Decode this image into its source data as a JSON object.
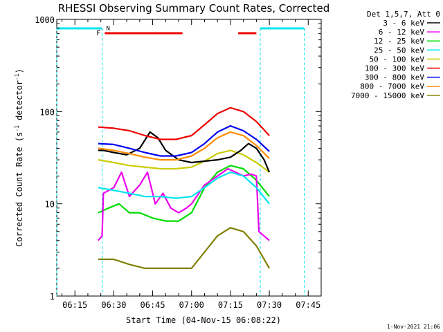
{
  "chart_data": {
    "type": "line",
    "title": "RHESSI Observing Summary Count Rates, Corrected",
    "xlabel": "Start Time (04-Nov-15 06:08:22)",
    "ylabel_main": "Corrected Count Rate (s",
    "ylabel_sup1": "-1",
    "ylabel_mid": " detector",
    "ylabel_sup2": "-1",
    "ylabel_end": ")",
    "timestamp": "1-Nov-2021 21:06",
    "y_scale": "log",
    "ylim": [
      1,
      1000
    ],
    "xlim_minutes": [
      "06:08",
      "07:50"
    ],
    "x_ticks": [
      "06:15",
      "06:30",
      "06:45",
      "07:00",
      "07:15",
      "07:30",
      "07:45"
    ],
    "y_ticks": [
      "1",
      "10",
      "100",
      "1000"
    ],
    "legend_header": "Det 1,5,7, Att 0",
    "legend_position": "right",
    "flags": {
      "night_label": "N",
      "flare_label": "F",
      "night_color": "#00e5ee",
      "flare_color": "#ee0000",
      "night_intervals": [
        [
          "06:08",
          "06:25.5"
        ],
        [
          "07:26.5",
          "07:43.5"
        ]
      ],
      "flare_intervals": [
        [
          "06:26.5",
          "06:56.5"
        ],
        [
          "07:18",
          "07:25"
        ]
      ]
    },
    "series": [
      {
        "name": "3 - 6 keV",
        "color": "#000000",
        "points": [
          [
            "06:24",
            38
          ],
          [
            "06:26",
            38
          ],
          [
            "06:30",
            36
          ],
          [
            "06:35",
            34
          ],
          [
            "06:40",
            40
          ],
          [
            "06:44",
            60
          ],
          [
            "06:47",
            52
          ],
          [
            "06:50",
            38
          ],
          [
            "06:55",
            30
          ],
          [
            "07:00",
            28
          ],
          [
            "07:05",
            29
          ],
          [
            "07:10",
            30
          ],
          [
            "07:15",
            32
          ],
          [
            "07:19",
            38
          ],
          [
            "07:22",
            45
          ],
          [
            "07:25",
            40
          ],
          [
            "07:28",
            30
          ],
          [
            "07:30",
            22
          ]
        ]
      },
      {
        "name": "6 - 12 keV",
        "color": "#ee00ee",
        "points": [
          [
            "06:24",
            4
          ],
          [
            "06:25.5",
            4.5
          ],
          [
            "06:26",
            13
          ],
          [
            "06:30",
            15
          ],
          [
            "06:33",
            22
          ],
          [
            "06:36",
            12
          ],
          [
            "06:40",
            16
          ],
          [
            "06:43",
            22
          ],
          [
            "06:46",
            10
          ],
          [
            "06:49",
            13
          ],
          [
            "06:52",
            9
          ],
          [
            "06:55",
            8
          ],
          [
            "06:58",
            9
          ],
          [
            "07:00",
            10
          ],
          [
            "07:05",
            16
          ],
          [
            "07:10",
            20
          ],
          [
            "07:14",
            24
          ],
          [
            "07:17",
            22
          ],
          [
            "07:20",
            20
          ],
          [
            "07:23",
            21
          ],
          [
            "07:25",
            20
          ],
          [
            "07:26",
            5
          ],
          [
            "07:30",
            4
          ]
        ]
      },
      {
        "name": "12 - 25 keV",
        "color": "#00dd00",
        "points": [
          [
            "06:24",
            8
          ],
          [
            "06:28",
            9
          ],
          [
            "06:32",
            10
          ],
          [
            "06:36",
            8
          ],
          [
            "06:40",
            8
          ],
          [
            "06:45",
            7
          ],
          [
            "06:50",
            6.5
          ],
          [
            "06:55",
            6.5
          ],
          [
            "07:00",
            8
          ],
          [
            "07:05",
            15
          ],
          [
            "07:10",
            22
          ],
          [
            "07:15",
            26
          ],
          [
            "07:20",
            24
          ],
          [
            "07:25",
            18
          ],
          [
            "07:30",
            12
          ]
        ]
      },
      {
        "name": "25 - 50 keV",
        "color": "#00e5ee",
        "points": [
          [
            "06:24",
            15
          ],
          [
            "06:30",
            14
          ],
          [
            "06:36",
            13
          ],
          [
            "06:42",
            12
          ],
          [
            "06:48",
            12
          ],
          [
            "06:54",
            11.5
          ],
          [
            "07:00",
            12
          ],
          [
            "07:05",
            15
          ],
          [
            "07:10",
            19
          ],
          [
            "07:15",
            22
          ],
          [
            "07:20",
            20
          ],
          [
            "07:25",
            15
          ],
          [
            "07:30",
            10
          ]
        ]
      },
      {
        "name": "50 - 100 keV",
        "color": "#cccc00",
        "points": [
          [
            "06:24",
            30
          ],
          [
            "06:30",
            28
          ],
          [
            "06:36",
            26
          ],
          [
            "06:42",
            25
          ],
          [
            "06:48",
            24
          ],
          [
            "06:54",
            24
          ],
          [
            "07:00",
            25
          ],
          [
            "07:05",
            29
          ],
          [
            "07:10",
            35
          ],
          [
            "07:15",
            38
          ],
          [
            "07:20",
            34
          ],
          [
            "07:25",
            28
          ],
          [
            "07:30",
            22
          ]
        ]
      },
      {
        "name": "100 - 300 keV",
        "color": "#ee0000",
        "points": [
          [
            "06:24",
            68
          ],
          [
            "06:30",
            66
          ],
          [
            "06:36",
            62
          ],
          [
            "06:42",
            55
          ],
          [
            "06:48",
            50
          ],
          [
            "06:54",
            50
          ],
          [
            "07:00",
            55
          ],
          [
            "07:05",
            72
          ],
          [
            "07:10",
            95
          ],
          [
            "07:15",
            110
          ],
          [
            "07:20",
            100
          ],
          [
            "07:25",
            78
          ],
          [
            "07:30",
            55
          ]
        ]
      },
      {
        "name": "300 - 800 keV",
        "color": "#0000ee",
        "points": [
          [
            "06:24",
            45
          ],
          [
            "06:30",
            44
          ],
          [
            "06:36",
            40
          ],
          [
            "06:42",
            36
          ],
          [
            "06:48",
            33
          ],
          [
            "06:54",
            33
          ],
          [
            "07:00",
            36
          ],
          [
            "07:05",
            45
          ],
          [
            "07:10",
            60
          ],
          [
            "07:15",
            70
          ],
          [
            "07:20",
            62
          ],
          [
            "07:25",
            50
          ],
          [
            "07:30",
            37
          ]
        ]
      },
      {
        "name": "800 - 7000 keV",
        "color": "#ff8c00",
        "points": [
          [
            "06:24",
            40
          ],
          [
            "06:30",
            38
          ],
          [
            "06:36",
            35
          ],
          [
            "06:42",
            32
          ],
          [
            "06:48",
            30
          ],
          [
            "06:54",
            30
          ],
          [
            "07:00",
            33
          ],
          [
            "07:05",
            40
          ],
          [
            "07:10",
            52
          ],
          [
            "07:15",
            60
          ],
          [
            "07:20",
            55
          ],
          [
            "07:25",
            43
          ],
          [
            "07:30",
            31
          ]
        ]
      },
      {
        "name": "7000 - 15000 keV",
        "color": "#808000",
        "points": [
          [
            "06:24",
            2.5
          ],
          [
            "06:30",
            2.5
          ],
          [
            "06:36",
            2.2
          ],
          [
            "06:42",
            2
          ],
          [
            "06:48",
            2
          ],
          [
            "06:54",
            2
          ],
          [
            "07:00",
            2
          ],
          [
            "07:05",
            3
          ],
          [
            "07:10",
            4.5
          ],
          [
            "07:15",
            5.5
          ],
          [
            "07:20",
            5
          ],
          [
            "07:25",
            3.5
          ],
          [
            "07:30",
            2
          ]
        ]
      }
    ]
  }
}
